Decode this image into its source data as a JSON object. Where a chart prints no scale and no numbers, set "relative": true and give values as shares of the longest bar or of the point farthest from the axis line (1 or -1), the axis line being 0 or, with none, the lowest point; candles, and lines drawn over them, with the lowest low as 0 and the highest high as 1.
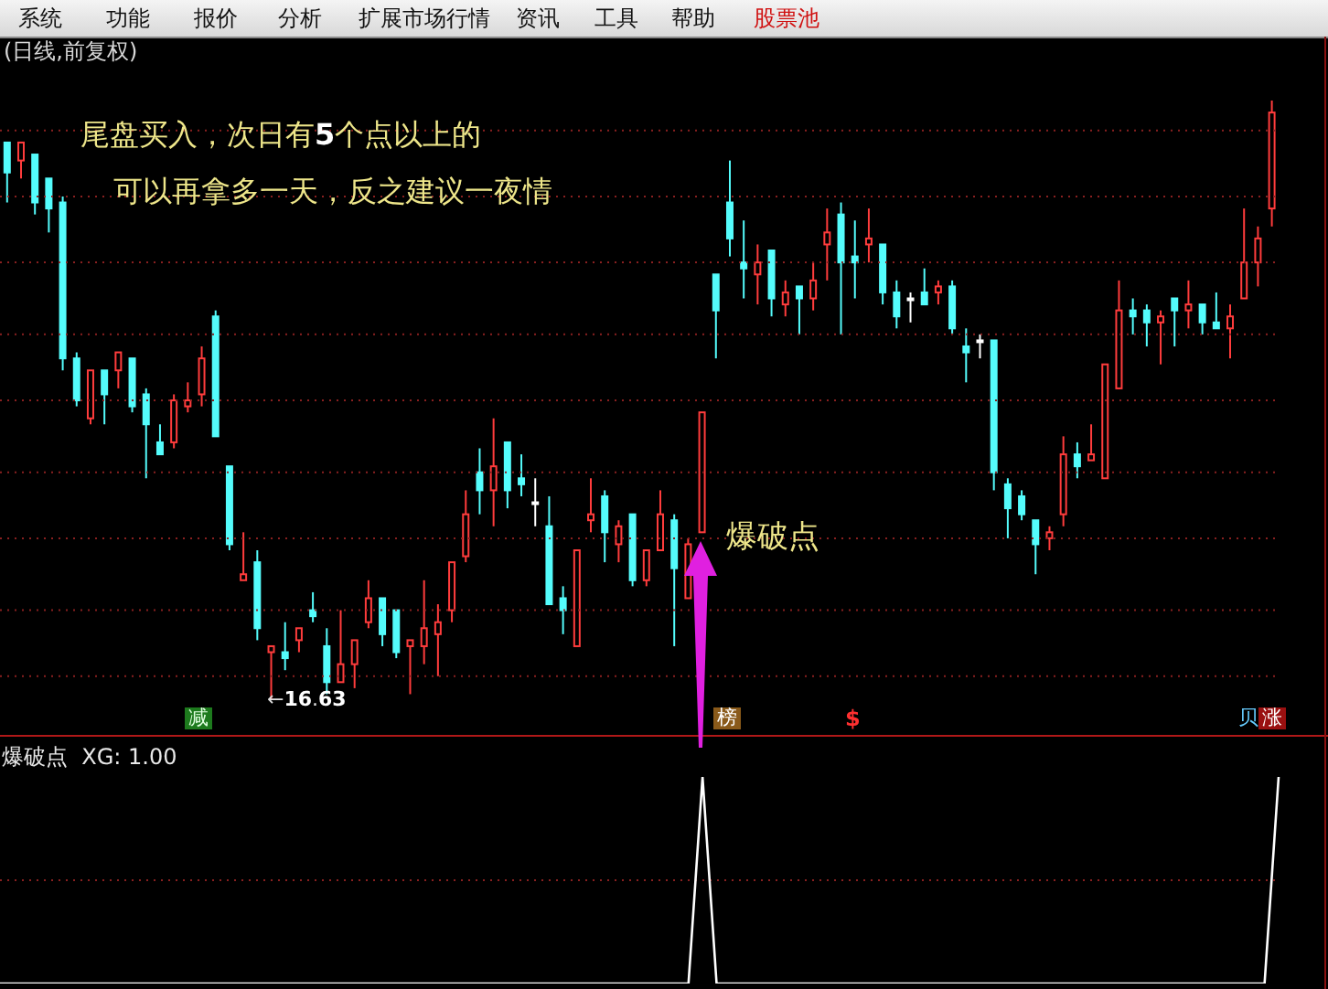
{
  "chart_data": [
    {
      "type": "candlestick",
      "title": "(日线,前复权)",
      "relative": true,
      "ref_lines": [
        {
          "axis": "y",
          "value": 0.95,
          "color": "#8a2020",
          "line_style": "dotted"
        },
        {
          "axis": "y",
          "value": 0.84,
          "color": "#8a2020",
          "line_style": "dotted"
        },
        {
          "axis": "y",
          "value": 0.73,
          "color": "#8a2020",
          "line_style": "dotted"
        },
        {
          "axis": "y",
          "value": 0.61,
          "color": "#8a2020",
          "line_style": "dotted"
        },
        {
          "axis": "y",
          "value": 0.5,
          "color": "#8a2020",
          "line_style": "dotted"
        },
        {
          "axis": "y",
          "value": 0.38,
          "color": "#8a2020",
          "line_style": "dotted"
        },
        {
          "axis": "y",
          "value": 0.27,
          "color": "#8a2020",
          "line_style": "dotted"
        },
        {
          "axis": "y",
          "value": 0.15,
          "color": "#8a2020",
          "line_style": "dotted"
        },
        {
          "axis": "y",
          "value": 0.04,
          "color": "#8a2020",
          "line_style": "dotted"
        }
      ],
      "categories": [
        null,
        null,
        null,
        null,
        null,
        null,
        null,
        null,
        null,
        null,
        null,
        null,
        null,
        null,
        null,
        null,
        null,
        null,
        null,
        null,
        null,
        null,
        null,
        null,
        null,
        null,
        null,
        null,
        null,
        null,
        null,
        null,
        null,
        null,
        null,
        null,
        null,
        null,
        null,
        null,
        null,
        null,
        null,
        null,
        null,
        null,
        null,
        null,
        null,
        null,
        null,
        null,
        null,
        null,
        null,
        null,
        null,
        null,
        null,
        null,
        null,
        null,
        null,
        null,
        null,
        null,
        null,
        null,
        null,
        null,
        null,
        null,
        null,
        null,
        null,
        null,
        null,
        null,
        null,
        null,
        null,
        null,
        null,
        null,
        null,
        null,
        null,
        null,
        null,
        null,
        null,
        null
      ],
      "ohlc": [
        [
          0.93,
          0.93,
          0.83,
          0.88
        ],
        [
          0.9,
          0.93,
          0.87,
          0.93
        ],
        [
          0.91,
          0.91,
          0.81,
          0.83
        ],
        [
          0.87,
          0.87,
          0.78,
          0.82
        ],
        [
          0.83,
          0.84,
          0.55,
          0.57
        ],
        [
          0.57,
          0.58,
          0.49,
          0.5
        ],
        [
          0.47,
          0.55,
          0.46,
          0.55
        ],
        [
          0.55,
          0.55,
          0.46,
          0.51
        ],
        [
          0.55,
          0.58,
          0.52,
          0.58
        ],
        [
          0.57,
          0.57,
          0.48,
          0.49
        ],
        [
          0.51,
          0.52,
          0.37,
          0.46
        ],
        [
          0.43,
          0.46,
          0.41,
          0.41
        ],
        [
          0.43,
          0.51,
          0.42,
          0.5
        ],
        [
          0.49,
          0.53,
          0.48,
          0.5
        ],
        [
          0.51,
          0.59,
          0.49,
          0.57
        ],
        [
          0.64,
          0.65,
          0.44,
          0.44
        ],
        [
          0.39,
          0.39,
          0.25,
          0.26
        ],
        [
          0.2,
          0.28,
          0.2,
          0.21
        ],
        [
          0.23,
          0.25,
          0.1,
          0.12
        ],
        [
          0.08,
          0.09,
          0,
          0.09
        ],
        [
          0.08,
          0.13,
          0.05,
          0.07
        ],
        [
          0.1,
          0.12,
          0.08,
          0.12
        ],
        [
          0.15,
          0.18,
          0.13,
          0.14
        ],
        [
          0.09,
          0.12,
          0.01,
          0.03
        ],
        [
          0.03,
          0.15,
          0.03,
          0.06
        ],
        [
          0.06,
          0.1,
          0.02,
          0.1
        ],
        [
          0.13,
          0.2,
          0.12,
          0.17
        ],
        [
          0.17,
          0.17,
          0.09,
          0.11
        ],
        [
          0.15,
          0.15,
          0.07,
          0.08
        ],
        [
          0.09,
          0.1,
          0.01,
          0.1
        ],
        [
          0.09,
          0.2,
          0.06,
          0.12
        ],
        [
          0.11,
          0.16,
          0.04,
          0.13
        ],
        [
          0.15,
          0.23,
          0.13,
          0.23
        ],
        [
          0.24,
          0.35,
          0.23,
          0.31
        ],
        [
          0.38,
          0.42,
          0.31,
          0.35
        ],
        [
          0.35,
          0.47,
          0.29,
          0.39
        ],
        [
          0.43,
          0.43,
          0.32,
          0.35
        ],
        [
          0.37,
          0.41,
          0.34,
          0.36
        ],
        [
          0.33,
          0.37,
          0.29,
          0.33
        ],
        [
          0.29,
          0.34,
          0.16,
          0.16
        ],
        [
          0.17,
          0.19,
          0.11,
          0.15
        ],
        [
          0.09,
          0.25,
          0.09,
          0.25
        ],
        [
          0.3,
          0.37,
          0.28,
          0.31
        ],
        [
          0.34,
          0.35,
          0.23,
          0.28
        ],
        [
          0.26,
          0.3,
          0.23,
          0.29
        ],
        [
          0.31,
          0.31,
          0.19,
          0.2
        ],
        [
          0.2,
          0.25,
          0.19,
          0.25
        ],
        [
          0.25,
          0.35,
          0.25,
          0.31
        ],
        [
          0.3,
          0.31,
          0.09,
          0.22
        ],
        [
          0.17,
          0.27,
          0.17,
          0.26
        ],
        [
          0.28,
          0.48,
          0.28,
          0.48
        ],
        [
          0.71,
          0.71,
          0.57,
          0.65
        ],
        [
          0.83,
          0.9,
          0.74,
          0.77
        ],
        [
          0.73,
          0.8,
          0.67,
          0.72
        ],
        [
          0.71,
          0.76,
          0.66,
          0.73
        ],
        [
          0.75,
          0.75,
          0.64,
          0.67
        ],
        [
          0.66,
          0.7,
          0.64,
          0.68
        ],
        [
          0.69,
          0.69,
          0.61,
          0.67
        ],
        [
          0.67,
          0.73,
          0.65,
          0.7
        ],
        [
          0.76,
          0.82,
          0.7,
          0.78
        ],
        [
          0.81,
          0.83,
          0.61,
          0.73
        ],
        [
          0.74,
          0.8,
          0.67,
          0.73
        ],
        [
          0.76,
          0.82,
          0.73,
          0.77
        ],
        [
          0.76,
          0.76,
          0.66,
          0.68
        ],
        [
          0.68,
          0.7,
          0.62,
          0.64
        ],
        [
          0.67,
          0.68,
          0.63,
          0.67
        ],
        [
          0.68,
          0.72,
          0.66,
          0.66
        ],
        [
          0.68,
          0.7,
          0.66,
          0.69
        ],
        [
          0.69,
          0.7,
          0.61,
          0.62
        ],
        [
          0.59,
          0.62,
          0.53,
          0.58
        ],
        [
          0.6,
          0.61,
          0.57,
          0.6
        ],
        [
          0.6,
          0.6,
          0.35,
          0.38
        ],
        [
          0.36,
          0.37,
          0.27,
          0.32
        ],
        [
          0.34,
          0.35,
          0.3,
          0.31
        ],
        [
          0.3,
          0.3,
          0.21,
          0.26
        ],
        [
          0.27,
          0.29,
          0.25,
          0.28
        ],
        [
          0.31,
          0.44,
          0.29,
          0.41
        ],
        [
          0.41,
          0.43,
          0.37,
          0.39
        ],
        [
          0.4,
          0.46,
          0.4,
          0.41
        ],
        [
          0.37,
          0.56,
          0.37,
          0.56
        ],
        [
          0.52,
          0.7,
          0.52,
          0.65
        ],
        [
          0.65,
          0.67,
          0.61,
          0.64
        ],
        [
          0.65,
          0.66,
          0.59,
          0.63
        ],
        [
          0.63,
          0.65,
          0.56,
          0.64
        ],
        [
          0.67,
          0.67,
          0.59,
          0.65
        ],
        [
          0.65,
          0.7,
          0.62,
          0.66
        ],
        [
          0.66,
          0.66,
          0.61,
          0.63
        ],
        [
          0.63,
          0.68,
          0.62,
          0.62
        ],
        [
          0.62,
          0.66,
          0.57,
          0.64
        ],
        [
          0.67,
          0.82,
          0.67,
          0.73
        ],
        [
          0.73,
          0.79,
          0.69,
          0.77
        ],
        [
          0.82,
          1,
          0.79,
          0.98
        ]
      ],
      "colors": [
        "#54fcfc",
        "#ff3c3c",
        "#54fcfc",
        "#54fcfc",
        "#54fcfc",
        "#54fcfc",
        "#ff3c3c",
        "#54fcfc",
        "#ff3c3c",
        "#54fcfc",
        "#54fcfc",
        "#54fcfc",
        "#ff3c3c",
        "#ff3c3c",
        "#ff3c3c",
        "#54fcfc",
        "#54fcfc",
        "#ff3c3c",
        "#54fcfc",
        "#ff3c3c",
        "#54fcfc",
        "#ff3c3c",
        "#54fcfc",
        "#54fcfc",
        "#ff3c3c",
        "#ff3c3c",
        "#ff3c3c",
        "#54fcfc",
        "#54fcfc",
        "#ff3c3c",
        "#ff3c3c",
        "#ff3c3c",
        "#ff3c3c",
        "#ff3c3c",
        "#54fcfc",
        "#ff3c3c",
        "#54fcfc",
        "#54fcfc",
        "#ffffff",
        "#54fcfc",
        "#54fcfc",
        "#ff3c3c",
        "#ff3c3c",
        "#54fcfc",
        "#ff3c3c",
        "#54fcfc",
        "#ff3c3c",
        "#ff3c3c",
        "#54fcfc",
        "#ff3c3c",
        "#ff3c3c",
        "#54fcfc",
        "#54fcfc",
        "#54fcfc",
        "#ff3c3c",
        "#54fcfc",
        "#ff3c3c",
        "#54fcfc",
        "#ff3c3c",
        "#ff3c3c",
        "#54fcfc",
        "#54fcfc",
        "#ff3c3c",
        "#54fcfc",
        "#54fcfc",
        "#ffffff",
        "#54fcfc",
        "#ff3c3c",
        "#54fcfc",
        "#54fcfc",
        "#ffffff",
        "#54fcfc",
        "#54fcfc",
        "#54fcfc",
        "#54fcfc",
        "#ff3c3c",
        "#ff3c3c",
        "#54fcfc",
        "#ff3c3c",
        "#ff3c3c",
        "#ff3c3c",
        "#54fcfc",
        "#54fcfc",
        "#ff3c3c",
        "#54fcfc",
        "#ff3c3c",
        "#54fcfc",
        "#54fcfc",
        "#ff3c3c",
        "#ff3c3c",
        "#ff3c3c",
        "#ff3c3c"
      ],
      "annotations": [
        "尾盘买入，次日有5个点以上的",
        "可以再拿多一天，反之建议一夜情",
        "爆破点",
        "←16.63",
        "减",
        "榜",
        "$",
        "贝",
        "涨",
        "系统",
        "功能",
        "报价",
        "分析",
        "扩展市场行情",
        "资讯",
        "工具",
        "帮助",
        "股票池"
      ]
    },
    {
      "type": "line",
      "title": "爆破点  XG: 1.00",
      "relative": true,
      "color": "#ffffff",
      "ref_lines": [
        {
          "axis": "y",
          "value": 0.5,
          "color": "#8a2020",
          "line_style": "dotted"
        }
      ],
      "categories": [
        null,
        null,
        null,
        null,
        null,
        null,
        null,
        null,
        null,
        null,
        null,
        null,
        null,
        null,
        null,
        null,
        null,
        null,
        null,
        null,
        null,
        null,
        null,
        null,
        null,
        null,
        null,
        null,
        null,
        null,
        null,
        null,
        null,
        null,
        null,
        null,
        null,
        null,
        null,
        null,
        null,
        null,
        null,
        null,
        null,
        null,
        null,
        null,
        null,
        null,
        null,
        null,
        null,
        null,
        null,
        null,
        null,
        null,
        null,
        null,
        null,
        null,
        null,
        null,
        null,
        null,
        null,
        null,
        null,
        null,
        null,
        null,
        null,
        null,
        null,
        null,
        null,
        null,
        null,
        null,
        null,
        null,
        null,
        null,
        null,
        null,
        null,
        null,
        null,
        null,
        null,
        null
      ],
      "values": [
        0,
        0,
        0,
        0,
        0,
        0,
        0,
        0,
        0,
        0,
        0,
        0,
        0,
        0,
        0,
        0,
        0,
        0,
        0,
        0,
        0,
        0,
        0,
        0,
        0,
        0,
        0,
        0,
        0,
        0,
        0,
        0,
        0,
        0,
        0,
        0,
        0,
        0,
        0,
        0,
        0,
        0,
        0,
        0,
        0,
        0,
        0,
        0,
        0,
        0,
        1,
        0,
        0,
        0,
        0,
        0,
        0,
        0,
        0,
        0,
        0,
        0,
        0,
        0,
        0,
        0,
        0,
        0,
        0,
        0,
        0,
        0,
        0,
        0,
        0,
        0,
        0,
        0,
        0,
        0,
        0,
        0,
        0,
        0,
        0,
        0,
        0,
        0,
        0,
        0,
        0,
        1
      ]
    }
  ]
}
